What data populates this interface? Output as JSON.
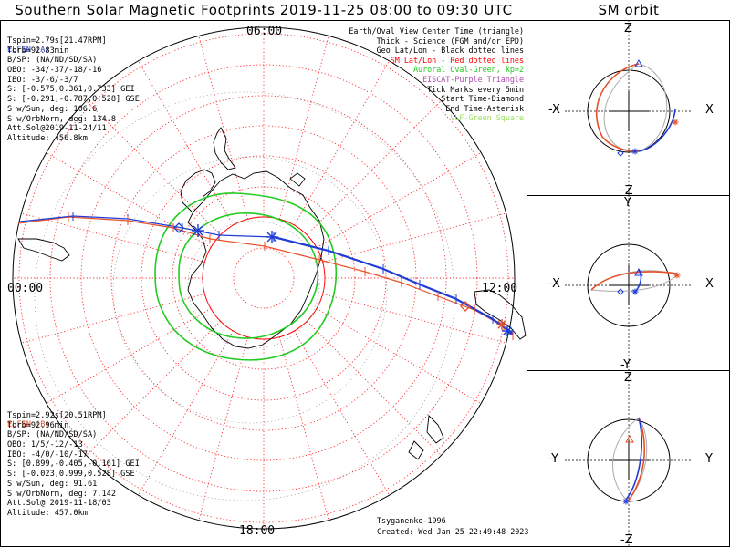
{
  "title": "Southern Solar Magnetic Footprints 2019-11-25 08:00 to 09:30 UTC",
  "orbit_title": "SM orbit",
  "hour_labels": {
    "top": "06:00",
    "left": "00:00",
    "right": "12:00",
    "bottom": "18:00"
  },
  "elfin_a": {
    "name": "ELFIN (A)",
    "lines": [
      "Tspin=2.79s[21.47RPM]",
      "Torb=92.83min",
      "B/SP: (NA/ND/SD/SA)",
      "OBO: -34/-37/-18/-16",
      "IBO: -3/-6/-3/7",
      "S: [-0.575,0.361,0.733] GEI",
      "S: [-0.291,-0.787,0.528] GSE",
      "S w/Sun, deg: 106.6",
      "S w/OrbNorm, deg: 134.8",
      "Att.Sol@2019-11-24/11",
      "Altitude: 456.8km"
    ],
    "color": "#1f3dd6"
  },
  "elfin_b": {
    "name": "ELFIN (B)",
    "lines": [
      "Tspin=2.92s[20.51RPM]",
      "Torb=92.96min",
      "B/SP: (NA/ND/SD/SA)",
      "OBO: 1/5/-12/-13",
      "IBO: -4/0/-10/-17",
      "S: [0.899,-0.405,-0.161] GEI",
      "S: [-0.023,0.999,0.528] GSE",
      "S w/Sun, deg: 91.61",
      "S w/OrbNorm, deg: 7.142",
      "Att.Sol@ 2019-11-18/03",
      "Altitude: 457.0km"
    ],
    "color": "#e8502a"
  },
  "legend": [
    {
      "text": "Earth/Oval View Center Time (triangle)",
      "color": "#000000"
    },
    {
      "text": "Thick - Science (FGM and/or EPD)",
      "color": "#000000"
    },
    {
      "text": "Geo Lat/Lon - Black dotted lines",
      "color": "#000000"
    },
    {
      "text": "SM Lat/Lon - Red dotted lines",
      "color": "#ff0000"
    },
    {
      "text": "Auroral Oval-Green, kp=2",
      "color": "#22cc22"
    },
    {
      "text": "EISCAT-Purple Triangle",
      "color": "#b04ab0"
    },
    {
      "text": "Tick Marks every 5min",
      "color": "#000000"
    },
    {
      "text": "Start Time-Diamond",
      "color": "#000000"
    },
    {
      "text": "End Time-Asterisk",
      "color": "#000000"
    },
    {
      "text": "VLF-Green Square",
      "color": "#99e066"
    }
  ],
  "footer": {
    "author": "Tsyganenko-1996",
    "created": "Created: Wed Jan 25 22:49:48 2023"
  },
  "orbit_panels": [
    {
      "top": "Z",
      "bottom": "-Z",
      "left": "-X",
      "right": "X"
    },
    {
      "top": "Y",
      "bottom": "-Y",
      "left": "-X",
      "right": "X"
    },
    {
      "top": "Z",
      "bottom": "-Z",
      "left": "-Y",
      "right": "Y"
    }
  ],
  "colors": {
    "elfin_a": "#1f3dd6",
    "elfin_b": "#e8502a",
    "sm_grid": "#ff0000",
    "geo_grid": "#000000",
    "auroral_oval": "#22cc22"
  }
}
